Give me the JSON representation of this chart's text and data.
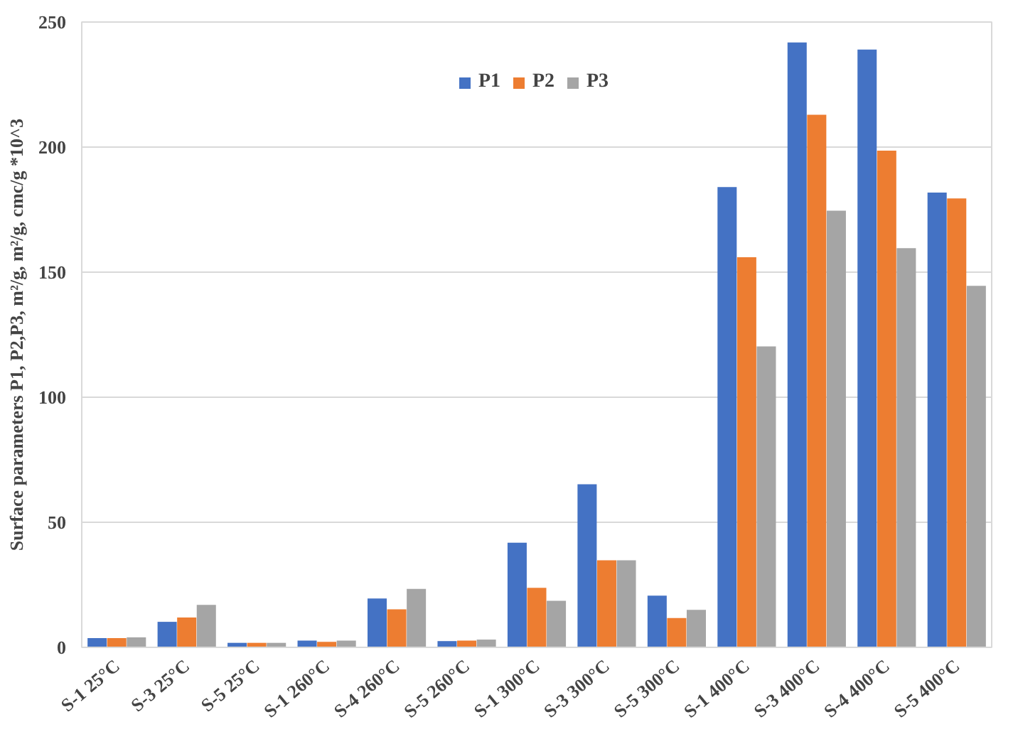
{
  "chart_data": {
    "type": "bar",
    "ylabel": "Surface parameters P1, P2,P3, m²/g, m²/g, cmc/g *10^3",
    "categories": [
      "S-1 25°C",
      "S-3 25°C",
      "S-5 25°C",
      "S-1 260°C",
      "S-4 260°C",
      "S-5 260°C",
      "S-1 300°C",
      "S-3 300°C",
      "S-5 300°C",
      "S-1 400°C",
      "S-3 400°C",
      "S-4 400°C",
      "S-5 400°C"
    ],
    "series": [
      {
        "name": "P1",
        "color": "#4472c4",
        "values": [
          3.7,
          10.2,
          1.8,
          2.7,
          19.5,
          2.5,
          41.8,
          65.2,
          20.7,
          184,
          241.8,
          239,
          181.8
        ]
      },
      {
        "name": "P2",
        "color": "#ed7d31",
        "values": [
          3.7,
          11.9,
          1.8,
          2.2,
          15.2,
          2.7,
          23.8,
          34.8,
          11.7,
          156,
          212.9,
          198.6,
          179.5
        ]
      },
      {
        "name": "P3",
        "color": "#a5a5a5",
        "values": [
          4,
          17,
          1.8,
          2.7,
          23.4,
          3.1,
          18.6,
          34.8,
          15,
          120.3,
          174.6,
          159.6,
          144.5
        ]
      }
    ],
    "ylim": [
      0,
      250
    ],
    "yticks": [
      0,
      50,
      100,
      150,
      200,
      250
    ],
    "grid": "y",
    "legend": "top"
  }
}
